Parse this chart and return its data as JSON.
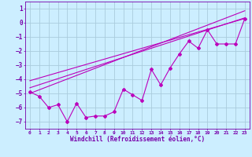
{
  "xlabel": "Windchill (Refroidissement éolien,°C)",
  "background_color": "#cceeff",
  "grid_color": "#aaccdd",
  "line_color": "#bb00bb",
  "spine_color": "#7700aa",
  "label_color": "#7700aa",
  "xlim": [
    -0.5,
    23.5
  ],
  "ylim": [
    -7.5,
    1.5
  ],
  "yticks": [
    1,
    0,
    -1,
    -2,
    -3,
    -4,
    -5,
    -6,
    -7
  ],
  "xticks": [
    0,
    1,
    2,
    3,
    4,
    5,
    6,
    7,
    8,
    9,
    10,
    11,
    12,
    13,
    14,
    15,
    16,
    17,
    18,
    19,
    20,
    21,
    22,
    23
  ],
  "data_x": [
    0,
    1,
    2,
    3,
    4,
    5,
    6,
    7,
    8,
    9,
    10,
    11,
    12,
    13,
    14,
    15,
    16,
    17,
    18,
    19,
    20,
    21,
    22,
    23
  ],
  "data_y": [
    -4.9,
    -5.2,
    -6.0,
    -5.8,
    -7.0,
    -5.7,
    -6.7,
    -6.6,
    -6.6,
    -6.3,
    -4.7,
    -5.1,
    -5.5,
    -3.3,
    -4.4,
    -3.2,
    -2.2,
    -1.3,
    -1.8,
    -0.5,
    -1.5,
    -1.5,
    -1.5,
    0.3
  ],
  "reg_lines": [
    [
      -5.0,
      0.85
    ],
    [
      -4.6,
      0.35
    ],
    [
      -4.1,
      0.3
    ]
  ]
}
